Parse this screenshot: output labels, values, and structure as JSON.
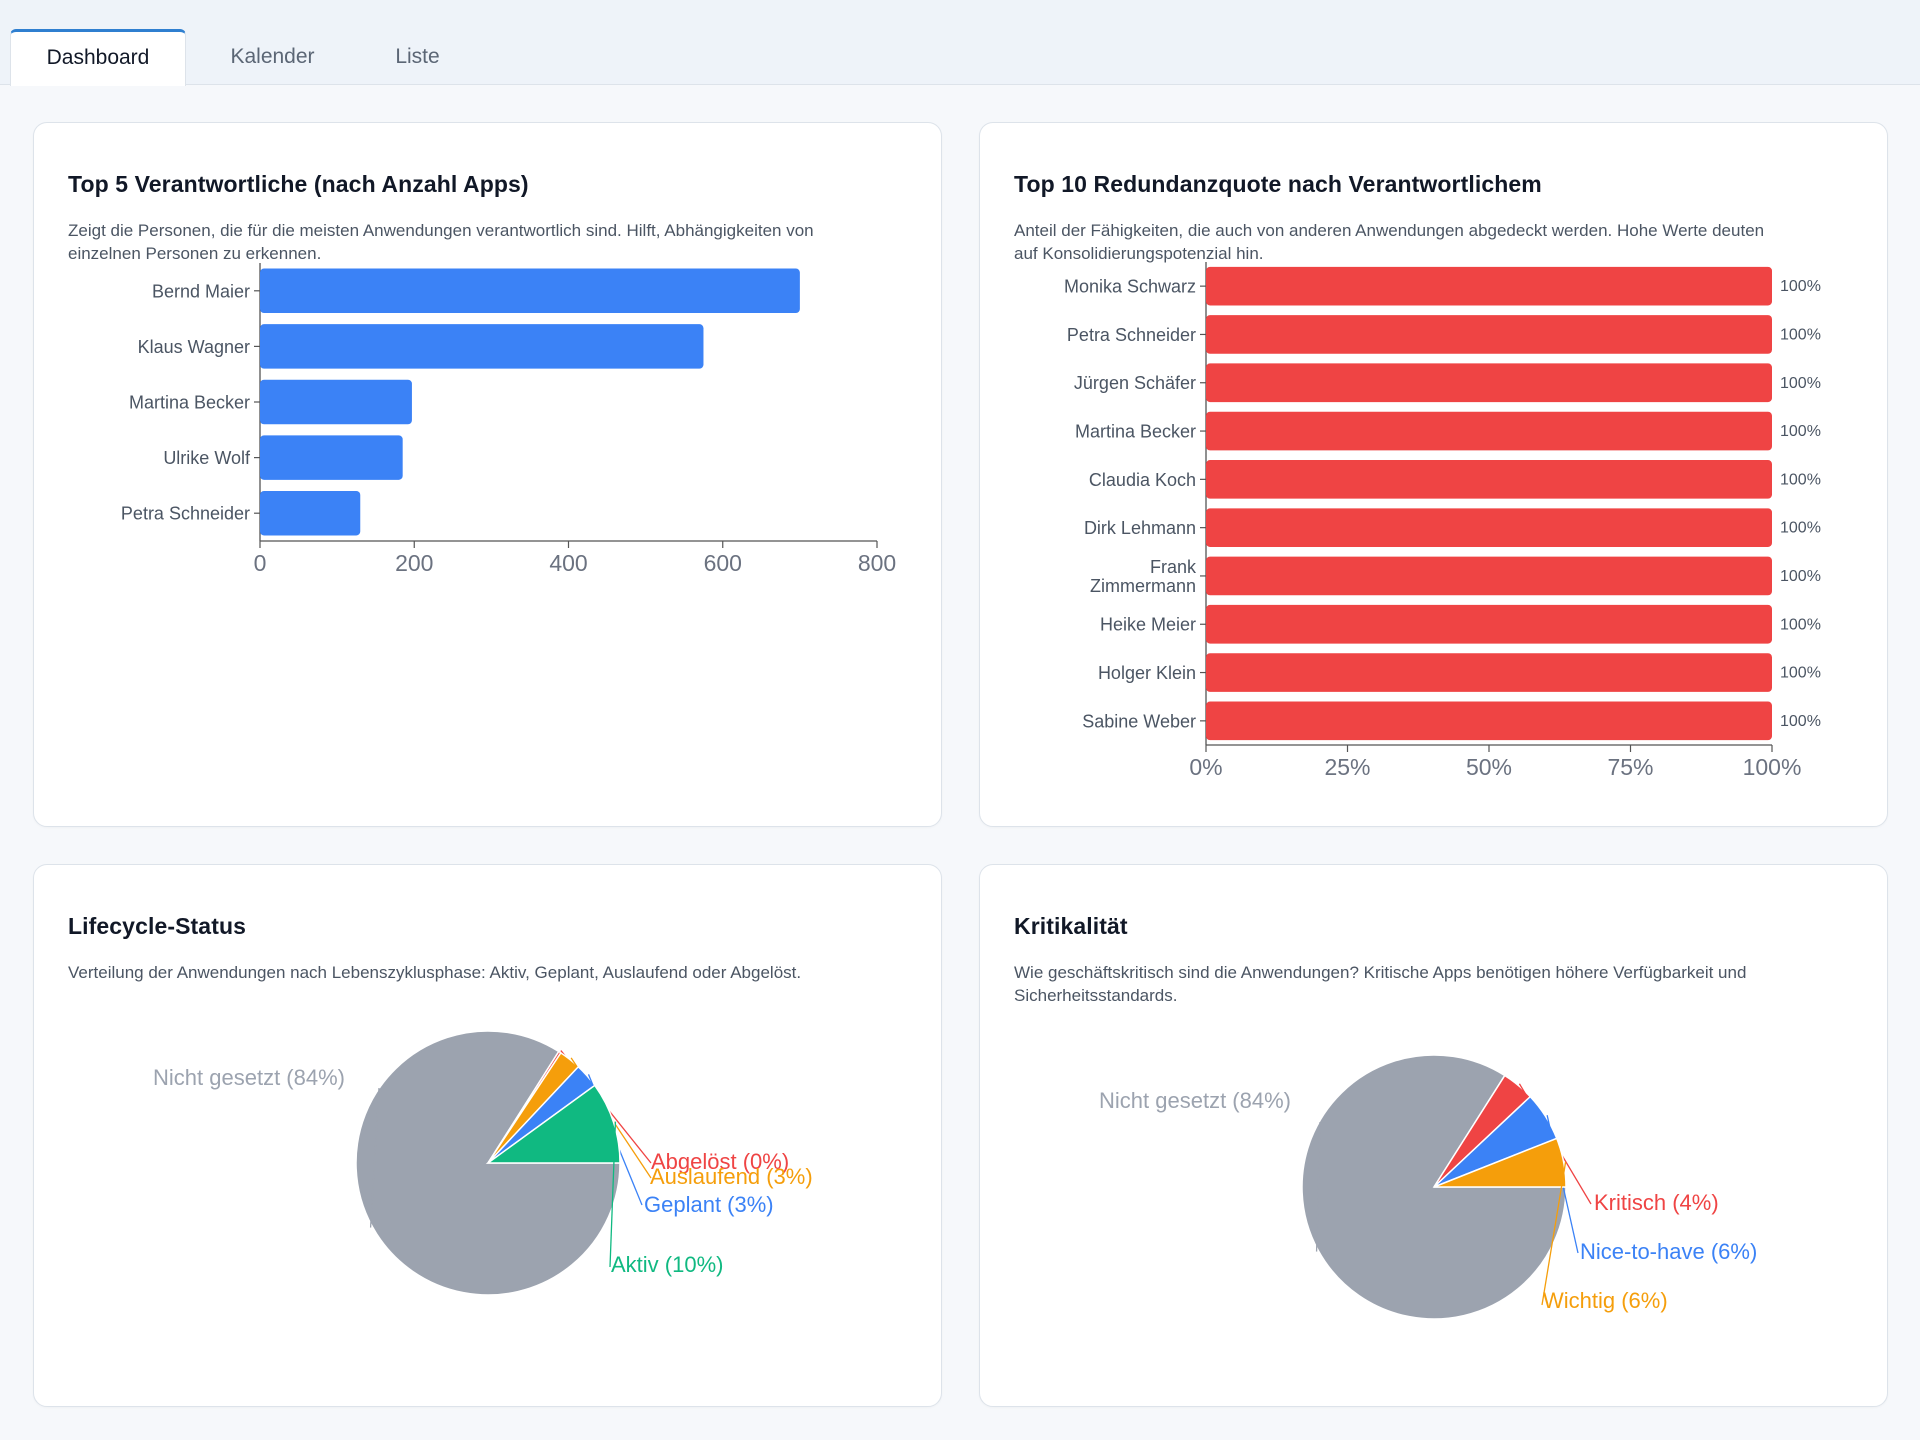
{
  "tabs": [
    {
      "label": "Dashboard",
      "active": true
    },
    {
      "label": "Kalender",
      "active": false
    },
    {
      "label": "Liste",
      "active": false
    }
  ],
  "cards": {
    "top5": {
      "title": "Top 5 Verantwortliche (nach Anzahl Apps)",
      "description_line1": "Zeigt die Personen, die für die meisten Anwendungen verantwortlich sind. Hilft, Abhängigkeiten von",
      "description_line2": "einzelnen Personen zu erkennen."
    },
    "redundanz": {
      "title": "Top 10 Redundanzquote nach Verantwortlichem",
      "description_line1": "Anteil der Fähigkeiten, die auch von anderen Anwendungen abgedeckt werden. Hohe Werte deuten",
      "description_line2": "auf Konsolidierungspotenzial hin."
    },
    "lifecycle": {
      "title": "Lifecycle-Status",
      "description_line1": "Verteilung der Anwendungen nach Lebenszyklusphase: Aktiv, Geplant, Auslaufend oder Abgelöst."
    },
    "kritikalitaet": {
      "title": "Kritikalität",
      "description_line1": "Wie geschäftskritisch sind die Anwendungen? Kritische Apps benötigen höhere Verfügbarkeit und",
      "description_line2": "Sicherheitsstandards."
    }
  },
  "chart_data": [
    {
      "id": "top5",
      "type": "bar",
      "orientation": "horizontal",
      "categories": [
        "Bernd Maier",
        "Klaus Wagner",
        "Martina Becker",
        "Ulrike Wolf",
        "Petra Schneider"
      ],
      "values": [
        700,
        575,
        197,
        185,
        130
      ],
      "xlim": [
        0,
        800
      ],
      "xticks": [
        "0",
        "200",
        "400",
        "600",
        "800"
      ],
      "color": "#3b82f6"
    },
    {
      "id": "redundanz",
      "type": "bar",
      "orientation": "horizontal",
      "categories": [
        "Monika Schwarz",
        "Petra Schneider",
        "Jürgen Schäfer",
        "Martina Becker",
        "Claudia Koch",
        "Dirk Lehmann",
        "Frank Zimmermann",
        "Heike Meier",
        "Holger Klein",
        "Sabine Weber"
      ],
      "values": [
        100,
        100,
        100,
        100,
        100,
        100,
        100,
        100,
        100,
        100
      ],
      "data_labels": [
        "100%",
        "100%",
        "100%",
        "100%",
        "100%",
        "100%",
        "100%",
        "100%",
        "100%",
        "100%"
      ],
      "xlim": [
        0,
        100
      ],
      "xticks": [
        "0%",
        "25%",
        "50%",
        "75%",
        "100%"
      ],
      "color": "#ef4444"
    },
    {
      "id": "lifecycle",
      "type": "pie",
      "slices": [
        {
          "label": "Nicht gesetzt (84%)",
          "value": 84,
          "color": "#9ca3af"
        },
        {
          "label": "Abgelöst (0%)",
          "value": 0.3,
          "color": "#ef4444"
        },
        {
          "label": "Auslaufend (3%)",
          "value": 2.7,
          "color": "#f59e0b"
        },
        {
          "label": "Geplant (3%)",
          "value": 3,
          "color": "#3b82f6"
        },
        {
          "label": "Aktiv (10%)",
          "value": 10,
          "color": "#10b981"
        }
      ]
    },
    {
      "id": "kritikalitaet",
      "type": "pie",
      "slices": [
        {
          "label": "Nicht gesetzt (84%)",
          "value": 84,
          "color": "#9ca3af"
        },
        {
          "label": "Kritisch (4%)",
          "value": 4,
          "color": "#ef4444"
        },
        {
          "label": "Nice-to-have (6%)",
          "value": 6,
          "color": "#3b82f6"
        },
        {
          "label": "Wichtig (6%)",
          "value": 6,
          "color": "#f59e0b"
        }
      ]
    }
  ]
}
